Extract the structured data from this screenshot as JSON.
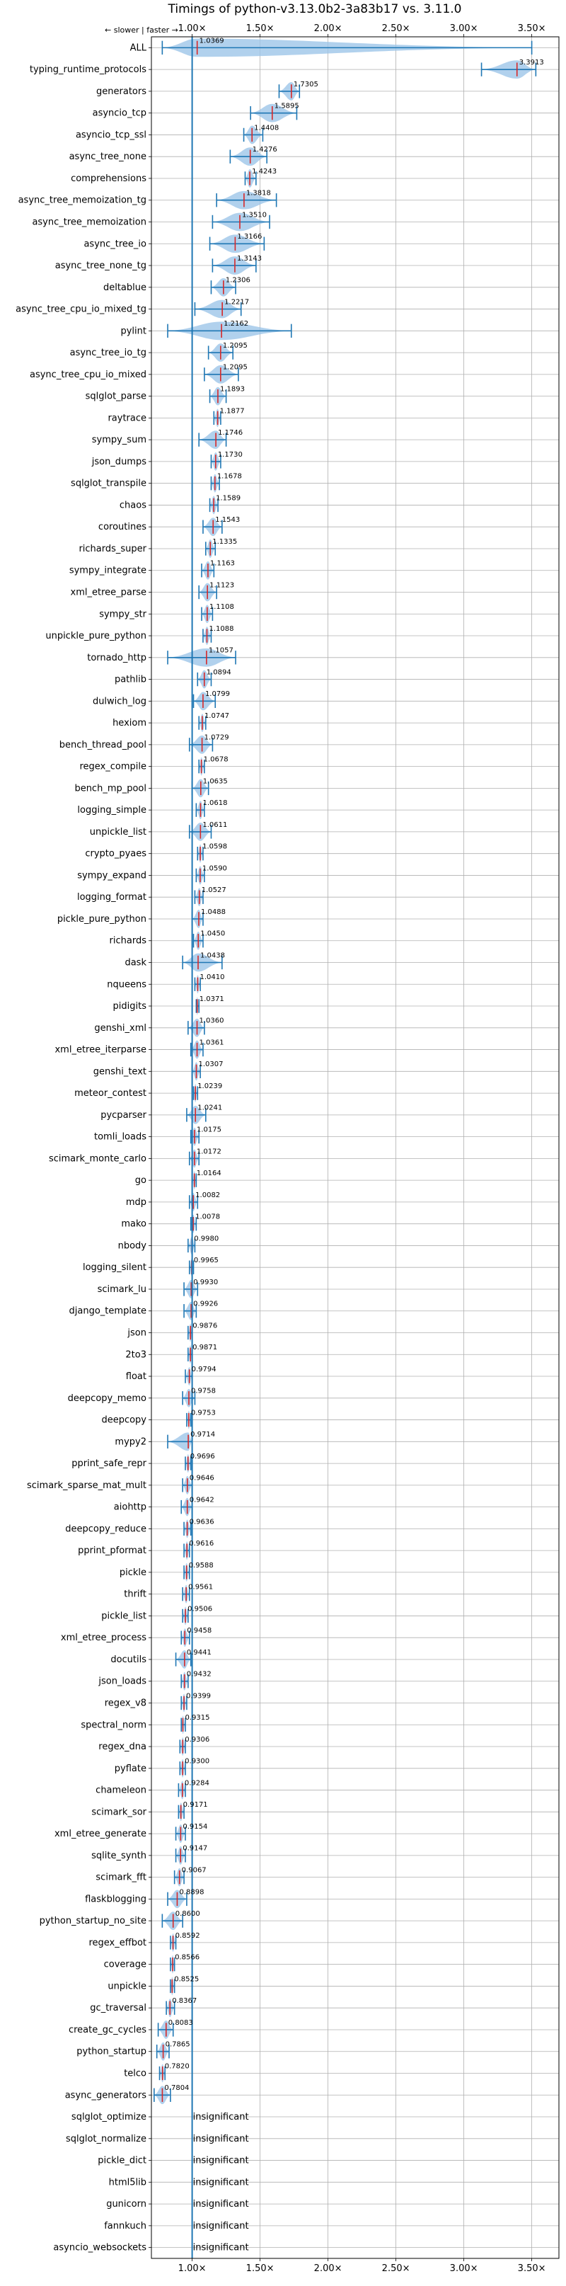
{
  "chart_data": {
    "type": "violin",
    "title": "Timings of python-v3.13.0b2-3a83b17 vs. 3.11.0",
    "direction_note": "← slower | faster →",
    "insignificant_label": "insignificant",
    "x_ticks": [
      1.0,
      1.5,
      2.0,
      2.5,
      3.0,
      3.5
    ],
    "x_tick_labels": [
      "1.00×",
      "1.50×",
      "2.00×",
      "2.50×",
      "3.00×",
      "3.50×"
    ],
    "xlim": [
      0.7,
      3.7
    ],
    "grid": true,
    "colors": {
      "violin": "#9ec6e8",
      "marker": "#1f77b4",
      "median_mark": "#d62728",
      "ref_line": "#1f77b4",
      "grid": "#b0b0b0"
    },
    "benchmarks": [
      {
        "name": "ALL",
        "value": 1.0369,
        "lo": 0.78,
        "hi": 3.5
      },
      {
        "name": "typing_runtime_protocols",
        "value": 3.3913,
        "lo": 3.13,
        "hi": 3.53
      },
      {
        "name": "generators",
        "value": 1.7305,
        "lo": 1.64,
        "hi": 1.79
      },
      {
        "name": "asyncio_tcp",
        "value": 1.5895,
        "lo": 1.43,
        "hi": 1.77
      },
      {
        "name": "asyncio_tcp_ssl",
        "value": 1.4408,
        "lo": 1.38,
        "hi": 1.52
      },
      {
        "name": "async_tree_none",
        "value": 1.4276,
        "lo": 1.28,
        "hi": 1.55
      },
      {
        "name": "comprehensions",
        "value": 1.4243,
        "lo": 1.39,
        "hi": 1.47
      },
      {
        "name": "async_tree_memoization_tg",
        "value": 1.3818,
        "lo": 1.18,
        "hi": 1.62
      },
      {
        "name": "async_tree_memoization",
        "value": 1.351,
        "lo": 1.15,
        "hi": 1.57
      },
      {
        "name": "async_tree_io",
        "value": 1.3166,
        "lo": 1.13,
        "hi": 1.53
      },
      {
        "name": "async_tree_none_tg",
        "value": 1.3143,
        "lo": 1.15,
        "hi": 1.47
      },
      {
        "name": "deltablue",
        "value": 1.2306,
        "lo": 1.14,
        "hi": 1.32
      },
      {
        "name": "async_tree_cpu_io_mixed_tg",
        "value": 1.2217,
        "lo": 1.02,
        "hi": 1.36
      },
      {
        "name": "pylint",
        "value": 1.2162,
        "lo": 0.82,
        "hi": 1.73
      },
      {
        "name": "async_tree_io_tg",
        "value": 1.2095,
        "lo": 1.12,
        "hi": 1.3
      },
      {
        "name": "async_tree_cpu_io_mixed",
        "value": 1.2095,
        "lo": 1.09,
        "hi": 1.34
      },
      {
        "name": "sqlglot_parse",
        "value": 1.1893,
        "lo": 1.13,
        "hi": 1.25
      },
      {
        "name": "raytrace",
        "value": 1.1877,
        "lo": 1.16,
        "hi": 1.21
      },
      {
        "name": "sympy_sum",
        "value": 1.1746,
        "lo": 1.05,
        "hi": 1.25
      },
      {
        "name": "json_dumps",
        "value": 1.173,
        "lo": 1.14,
        "hi": 1.21
      },
      {
        "name": "sqlglot_transpile",
        "value": 1.1678,
        "lo": 1.14,
        "hi": 1.2
      },
      {
        "name": "chaos",
        "value": 1.1589,
        "lo": 1.13,
        "hi": 1.19
      },
      {
        "name": "coroutines",
        "value": 1.1543,
        "lo": 1.08,
        "hi": 1.22
      },
      {
        "name": "richards_super",
        "value": 1.1335,
        "lo": 1.1,
        "hi": 1.17
      },
      {
        "name": "sympy_integrate",
        "value": 1.1163,
        "lo": 1.07,
        "hi": 1.16
      },
      {
        "name": "xml_etree_parse",
        "value": 1.1123,
        "lo": 1.05,
        "hi": 1.18
      },
      {
        "name": "sympy_str",
        "value": 1.1108,
        "lo": 1.07,
        "hi": 1.15
      },
      {
        "name": "unpickle_pure_python",
        "value": 1.1088,
        "lo": 1.08,
        "hi": 1.14
      },
      {
        "name": "tornado_http",
        "value": 1.1057,
        "lo": 0.82,
        "hi": 1.32
      },
      {
        "name": "pathlib",
        "value": 1.0894,
        "lo": 1.04,
        "hi": 1.14
      },
      {
        "name": "dulwich_log",
        "value": 1.0799,
        "lo": 1.01,
        "hi": 1.17
      },
      {
        "name": "hexiom",
        "value": 1.0747,
        "lo": 1.05,
        "hi": 1.1
      },
      {
        "name": "bench_thread_pool",
        "value": 1.0729,
        "lo": 0.98,
        "hi": 1.15
      },
      {
        "name": "regex_compile",
        "value": 1.0678,
        "lo": 1.05,
        "hi": 1.09
      },
      {
        "name": "bench_mp_pool",
        "value": 1.0635,
        "lo": 1.0,
        "hi": 1.12
      },
      {
        "name": "logging_simple",
        "value": 1.0618,
        "lo": 1.03,
        "hi": 1.09
      },
      {
        "name": "unpickle_list",
        "value": 1.0611,
        "lo": 0.98,
        "hi": 1.14
      },
      {
        "name": "crypto_pyaes",
        "value": 1.0598,
        "lo": 1.04,
        "hi": 1.08
      },
      {
        "name": "sympy_expand",
        "value": 1.059,
        "lo": 1.03,
        "hi": 1.09
      },
      {
        "name": "logging_format",
        "value": 1.0527,
        "lo": 1.02,
        "hi": 1.08
      },
      {
        "name": "pickle_pure_python",
        "value": 1.0488,
        "lo": 1.0,
        "hi": 1.08
      },
      {
        "name": "richards",
        "value": 1.045,
        "lo": 1.01,
        "hi": 1.08
      },
      {
        "name": "dask",
        "value": 1.0438,
        "lo": 0.93,
        "hi": 1.22
      },
      {
        "name": "nqueens",
        "value": 1.041,
        "lo": 1.02,
        "hi": 1.06
      },
      {
        "name": "pidigits",
        "value": 1.0371,
        "lo": 1.03,
        "hi": 1.05
      },
      {
        "name": "genshi_xml",
        "value": 1.036,
        "lo": 0.97,
        "hi": 1.09
      },
      {
        "name": "xml_etree_iterparse",
        "value": 1.0361,
        "lo": 0.99,
        "hi": 1.08
      },
      {
        "name": "genshi_text",
        "value": 1.0307,
        "lo": 1.0,
        "hi": 1.06
      },
      {
        "name": "meteor_contest",
        "value": 1.0239,
        "lo": 1.01,
        "hi": 1.04
      },
      {
        "name": "pycparser",
        "value": 1.0241,
        "lo": 0.96,
        "hi": 1.1
      },
      {
        "name": "tomli_loads",
        "value": 1.0175,
        "lo": 0.99,
        "hi": 1.05
      },
      {
        "name": "scimark_monte_carlo",
        "value": 1.0172,
        "lo": 0.98,
        "hi": 1.05
      },
      {
        "name": "go",
        "value": 1.0164,
        "lo": 1.0,
        "hi": 1.03
      },
      {
        "name": "mdp",
        "value": 1.0082,
        "lo": 0.98,
        "hi": 1.04
      },
      {
        "name": "mako",
        "value": 1.0078,
        "lo": 0.99,
        "hi": 1.03
      },
      {
        "name": "nbody",
        "value": 0.998,
        "lo": 0.97,
        "hi": 1.02
      },
      {
        "name": "logging_silent",
        "value": 0.9965,
        "lo": 0.98,
        "hi": 1.01
      },
      {
        "name": "scimark_lu",
        "value": 0.993,
        "lo": 0.94,
        "hi": 1.04
      },
      {
        "name": "django_template",
        "value": 0.9926,
        "lo": 0.94,
        "hi": 1.03
      },
      {
        "name": "json",
        "value": 0.9876,
        "lo": 0.97,
        "hi": 1.0
      },
      {
        "name": "2to3",
        "value": 0.9871,
        "lo": 0.97,
        "hi": 1.0
      },
      {
        "name": "float",
        "value": 0.9794,
        "lo": 0.95,
        "hi": 1.0
      },
      {
        "name": "deepcopy_memo",
        "value": 0.9758,
        "lo": 0.93,
        "hi": 1.02
      },
      {
        "name": "deepcopy",
        "value": 0.9753,
        "lo": 0.96,
        "hi": 0.99
      },
      {
        "name": "mypy2",
        "value": 0.9714,
        "lo": 0.82,
        "hi": 1.0
      },
      {
        "name": "pprint_safe_repr",
        "value": 0.9696,
        "lo": 0.95,
        "hi": 0.99
      },
      {
        "name": "scimark_sparse_mat_mult",
        "value": 0.9646,
        "lo": 0.93,
        "hi": 1.0
      },
      {
        "name": "aiohttp",
        "value": 0.9642,
        "lo": 0.92,
        "hi": 1.0
      },
      {
        "name": "deepcopy_reduce",
        "value": 0.9636,
        "lo": 0.94,
        "hi": 0.99
      },
      {
        "name": "pprint_pformat",
        "value": 0.9616,
        "lo": 0.94,
        "hi": 0.98
      },
      {
        "name": "pickle",
        "value": 0.9588,
        "lo": 0.94,
        "hi": 0.98
      },
      {
        "name": "thrift",
        "value": 0.9561,
        "lo": 0.93,
        "hi": 0.98
      },
      {
        "name": "pickle_list",
        "value": 0.9506,
        "lo": 0.93,
        "hi": 0.97
      },
      {
        "name": "xml_etree_process",
        "value": 0.9458,
        "lo": 0.92,
        "hi": 0.98
      },
      {
        "name": "docutils",
        "value": 0.9441,
        "lo": 0.88,
        "hi": 0.99
      },
      {
        "name": "json_loads",
        "value": 0.9432,
        "lo": 0.92,
        "hi": 0.97
      },
      {
        "name": "regex_v8",
        "value": 0.9399,
        "lo": 0.92,
        "hi": 0.96
      },
      {
        "name": "spectral_norm",
        "value": 0.9315,
        "lo": 0.92,
        "hi": 0.95
      },
      {
        "name": "regex_dna",
        "value": 0.9306,
        "lo": 0.91,
        "hi": 0.95
      },
      {
        "name": "pyflate",
        "value": 0.93,
        "lo": 0.91,
        "hi": 0.95
      },
      {
        "name": "chameleon",
        "value": 0.9284,
        "lo": 0.9,
        "hi": 0.95
      },
      {
        "name": "scimark_sor",
        "value": 0.9171,
        "lo": 0.9,
        "hi": 0.94
      },
      {
        "name": "xml_etree_generate",
        "value": 0.9154,
        "lo": 0.88,
        "hi": 0.95
      },
      {
        "name": "sqlite_synth",
        "value": 0.9147,
        "lo": 0.88,
        "hi": 0.95
      },
      {
        "name": "scimark_fft",
        "value": 0.9067,
        "lo": 0.87,
        "hi": 0.94
      },
      {
        "name": "flaskblogging",
        "value": 0.8898,
        "lo": 0.82,
        "hi": 0.96
      },
      {
        "name": "python_startup_no_site",
        "value": 0.86,
        "lo": 0.78,
        "hi": 0.93
      },
      {
        "name": "regex_effbot",
        "value": 0.8592,
        "lo": 0.84,
        "hi": 0.88
      },
      {
        "name": "coverage",
        "value": 0.8566,
        "lo": 0.84,
        "hi": 0.87
      },
      {
        "name": "unpickle",
        "value": 0.8525,
        "lo": 0.84,
        "hi": 0.87
      },
      {
        "name": "gc_traversal",
        "value": 0.8367,
        "lo": 0.81,
        "hi": 0.87
      },
      {
        "name": "create_gc_cycles",
        "value": 0.8083,
        "lo": 0.75,
        "hi": 0.86
      },
      {
        "name": "python_startup",
        "value": 0.7865,
        "lo": 0.74,
        "hi": 0.83
      },
      {
        "name": "telco",
        "value": 0.782,
        "lo": 0.76,
        "hi": 0.8
      },
      {
        "name": "async_generators",
        "value": 0.7804,
        "lo": 0.72,
        "hi": 0.84
      },
      {
        "name": "sqlglot_optimize",
        "insignificant": true
      },
      {
        "name": "sqlglot_normalize",
        "insignificant": true
      },
      {
        "name": "pickle_dict",
        "insignificant": true
      },
      {
        "name": "html5lib",
        "insignificant": true
      },
      {
        "name": "gunicorn",
        "insignificant": true
      },
      {
        "name": "fannkuch",
        "insignificant": true
      },
      {
        "name": "asyncio_websockets",
        "insignificant": true
      }
    ]
  }
}
